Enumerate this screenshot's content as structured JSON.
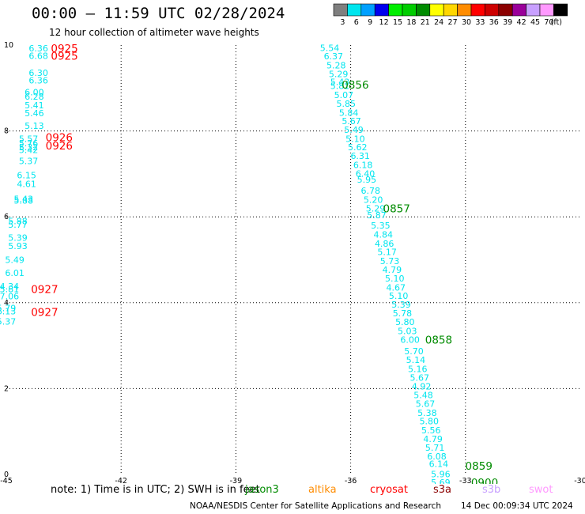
{
  "header": {
    "title": "00:00 – 11:59 UTC 02/28/2024",
    "subtitle": "12 hour collection of altimeter wave heights"
  },
  "colorbar": {
    "unit_label": "(ft)",
    "bins": [
      {
        "label": "3",
        "color": "#7f7f7f"
      },
      {
        "label": "6",
        "color": "#00e5ee"
      },
      {
        "label": "9",
        "color": "#00a0ff"
      },
      {
        "label": "12",
        "color": "#0000ee"
      },
      {
        "label": "15",
        "color": "#00ee00"
      },
      {
        "label": "18",
        "color": "#00cd00"
      },
      {
        "label": "21",
        "color": "#008b00"
      },
      {
        "label": "24",
        "color": "#ffff00"
      },
      {
        "label": "27",
        "color": "#ffd700"
      },
      {
        "label": "30",
        "color": "#ff8c00"
      },
      {
        "label": "33",
        "color": "#ff0000"
      },
      {
        "label": "36",
        "color": "#cd0000"
      },
      {
        "label": "39",
        "color": "#8b0000"
      },
      {
        "label": "42",
        "color": "#9a009a"
      },
      {
        "label": "45",
        "color": "#c8a0ff"
      },
      {
        "label": "70",
        "color": "#ff99ff"
      },
      {
        "label": "",
        "color": "#000000"
      }
    ]
  },
  "footer": {
    "note": "note:  1) Time is in UTC;  2) SWH is in feet",
    "satellites": [
      {
        "name": "jason3",
        "color": "#008b00"
      },
      {
        "name": "altika",
        "color": "#ff8c00"
      },
      {
        "name": "cryosat",
        "color": "#ff0000"
      },
      {
        "name": "s3a",
        "color": "#8b0000"
      },
      {
        "name": "s3b",
        "color": "#c8a0ff"
      },
      {
        "name": "swot",
        "color": "#ff99ff"
      }
    ],
    "credit": "NOAA/NESDIS Center for Satellite Applications and Research",
    "stamp": "14 Dec 00:09:34 UTC 2024"
  },
  "chart_data": {
    "type": "scatter",
    "title": "00:00 – 11:59 UTC 02/28/2024",
    "subtitle": "12 hour collection of altimeter wave heights",
    "xlabel": "",
    "ylabel": "",
    "xlim": [
      -45,
      -30
    ],
    "ylim": [
      0,
      10
    ],
    "x_ticks": [
      -45,
      -42,
      -39,
      -36,
      -33,
      -30
    ],
    "y_ticks": [
      0,
      2,
      4,
      6,
      8,
      10
    ],
    "grid": true,
    "value_color": "#00e5ee",
    "series": [
      {
        "name": "cryosat",
        "color": "#ff0000",
        "points": [
          {
            "x": -44.16,
            "y": 9.93,
            "v": "6.36"
          },
          {
            "x": -44.16,
            "y": 9.75,
            "v": "6.68"
          },
          {
            "x": -44.16,
            "y": 9.36,
            "v": "6.30"
          },
          {
            "x": -44.16,
            "y": 9.18,
            "v": "6.36"
          },
          {
            "x": -44.27,
            "y": 8.9,
            "v": "6.00"
          },
          {
            "x": -44.27,
            "y": 8.8,
            "v": "6.28"
          },
          {
            "x": -44.27,
            "y": 8.6,
            "v": "5.41"
          },
          {
            "x": -44.27,
            "y": 8.42,
            "v": "5.46"
          },
          {
            "x": -44.27,
            "y": 8.12,
            "v": "5.13"
          },
          {
            "x": -44.42,
            "y": 7.82,
            "v": "5.57"
          },
          {
            "x": -44.42,
            "y": 7.72,
            "v": "5.76"
          },
          {
            "x": -44.42,
            "y": 7.62,
            "v": "5.32"
          },
          {
            "x": -44.42,
            "y": 7.56,
            "v": "5.42"
          },
          {
            "x": -44.42,
            "y": 7.3,
            "v": "5.37"
          },
          {
            "x": -44.47,
            "y": 6.97,
            "v": "6.15"
          },
          {
            "x": -44.47,
            "y": 6.77,
            "v": "4.61"
          },
          {
            "x": -44.55,
            "y": 6.42,
            "v": "5.43"
          },
          {
            "x": -44.55,
            "y": 6.38,
            "v": "5.88"
          },
          {
            "x": -44.7,
            "y": 5.9,
            "v": "5.88"
          },
          {
            "x": -44.7,
            "y": 5.82,
            "v": "5.77"
          },
          {
            "x": -44.7,
            "y": 5.52,
            "v": "5.39"
          },
          {
            "x": -44.7,
            "y": 5.32,
            "v": "5.93"
          },
          {
            "x": -44.78,
            "y": 5.0,
            "v": "5.49"
          },
          {
            "x": -44.78,
            "y": 4.7,
            "v": "6.01"
          },
          {
            "x": -44.92,
            "y": 4.38,
            "v": "4.34"
          },
          {
            "x": -44.92,
            "y": 4.32,
            "v": "5.81"
          },
          {
            "x": -44.92,
            "y": 4.15,
            "v": "7.06"
          },
          {
            "x": -45.0,
            "y": 3.88,
            "v": "5.79"
          },
          {
            "x": -45.0,
            "y": 3.8,
            "v": "6.13"
          },
          {
            "x": -45.0,
            "y": 3.56,
            "v": "5.37"
          }
        ],
        "time_labels": [
          {
            "x": -43.48,
            "y": 9.93,
            "t": "0925"
          },
          {
            "x": -43.48,
            "y": 9.75,
            "t": "0925"
          },
          {
            "x": -43.62,
            "y": 7.85,
            "t": "0926"
          },
          {
            "x": -43.62,
            "y": 7.66,
            "t": "0926"
          },
          {
            "x": -44.0,
            "y": 4.32,
            "t": "0927"
          },
          {
            "x": -44.0,
            "y": 3.78,
            "t": "0927"
          }
        ]
      },
      {
        "name": "jason3",
        "color": "#008b00",
        "points": [
          {
            "x": -36.55,
            "y": 9.94,
            "v": "5.54"
          },
          {
            "x": -36.45,
            "y": 9.74,
            "v": "6.37"
          },
          {
            "x": -36.38,
            "y": 9.53,
            "v": "5.28"
          },
          {
            "x": -36.32,
            "y": 9.33,
            "v": "5.29"
          },
          {
            "x": -36.28,
            "y": 9.14,
            "v": "5.43"
          },
          {
            "x": -36.28,
            "y": 9.05,
            "v": "5.81"
          },
          {
            "x": -36.18,
            "y": 8.84,
            "v": "5.07"
          },
          {
            "x": -36.12,
            "y": 8.64,
            "v": "5.85"
          },
          {
            "x": -36.05,
            "y": 8.43,
            "v": "5.84"
          },
          {
            "x": -35.98,
            "y": 8.23,
            "v": "5.67"
          },
          {
            "x": -35.92,
            "y": 8.03,
            "v": "5.49"
          },
          {
            "x": -35.88,
            "y": 7.82,
            "v": "5.10"
          },
          {
            "x": -35.82,
            "y": 7.62,
            "v": "5.62"
          },
          {
            "x": -35.75,
            "y": 7.42,
            "v": "6.31"
          },
          {
            "x": -35.68,
            "y": 7.21,
            "v": "6.18"
          },
          {
            "x": -35.62,
            "y": 7.01,
            "v": "6.40"
          },
          {
            "x": -35.58,
            "y": 6.87,
            "v": "5.95"
          },
          {
            "x": -35.48,
            "y": 6.61,
            "v": "6.78"
          },
          {
            "x": -35.41,
            "y": 6.4,
            "v": "5.20"
          },
          {
            "x": -35.35,
            "y": 6.2,
            "v": "5.29"
          },
          {
            "x": -35.32,
            "y": 6.04,
            "v": "5.87"
          },
          {
            "x": -35.22,
            "y": 5.8,
            "v": "5.35"
          },
          {
            "x": -35.15,
            "y": 5.59,
            "v": "4.84"
          },
          {
            "x": -35.12,
            "y": 5.38,
            "v": "4.86"
          },
          {
            "x": -35.05,
            "y": 5.18,
            "v": "5.17"
          },
          {
            "x": -34.98,
            "y": 4.97,
            "v": "5.73"
          },
          {
            "x": -34.92,
            "y": 4.77,
            "v": "4.79"
          },
          {
            "x": -34.85,
            "y": 4.57,
            "v": "5.10"
          },
          {
            "x": -34.82,
            "y": 4.36,
            "v": "4.67"
          },
          {
            "x": -34.75,
            "y": 4.16,
            "v": "5.10"
          },
          {
            "x": -34.68,
            "y": 3.96,
            "v": "5.39"
          },
          {
            "x": -34.65,
            "y": 3.76,
            "v": "5.78"
          },
          {
            "x": -34.58,
            "y": 3.55,
            "v": "5.80"
          },
          {
            "x": -34.52,
            "y": 3.34,
            "v": "5.03"
          },
          {
            "x": -34.45,
            "y": 3.14,
            "v": "6.00"
          },
          {
            "x": -34.35,
            "y": 2.87,
            "v": "5.70"
          },
          {
            "x": -34.3,
            "y": 2.67,
            "v": "5.14"
          },
          {
            "x": -34.25,
            "y": 2.46,
            "v": "5.16"
          },
          {
            "x": -34.2,
            "y": 2.26,
            "v": "5.67"
          },
          {
            "x": -34.15,
            "y": 2.05,
            "v": "4.92"
          },
          {
            "x": -34.1,
            "y": 1.85,
            "v": "5.48"
          },
          {
            "x": -34.05,
            "y": 1.65,
            "v": "5.67"
          },
          {
            "x": -34.0,
            "y": 1.44,
            "v": "5.38"
          },
          {
            "x": -33.95,
            "y": 1.24,
            "v": "5.80"
          },
          {
            "x": -33.9,
            "y": 1.03,
            "v": "5.56"
          },
          {
            "x": -33.85,
            "y": 0.83,
            "v": "4.79"
          },
          {
            "x": -33.8,
            "y": 0.63,
            "v": "5.71"
          },
          {
            "x": -33.75,
            "y": 0.42,
            "v": "6.08"
          },
          {
            "x": -33.7,
            "y": 0.25,
            "v": "6.14"
          },
          {
            "x": -33.65,
            "y": 0.01,
            "v": "5.96"
          },
          {
            "x": -33.65,
            "y": -0.18,
            "v": "5.69"
          }
        ],
        "time_labels": [
          {
            "x": -35.88,
            "y": 9.08,
            "t": "0856"
          },
          {
            "x": -34.8,
            "y": 6.2,
            "t": "0857"
          },
          {
            "x": -33.7,
            "y": 3.14,
            "t": "0858"
          },
          {
            "x": -32.65,
            "y": 0.2,
            "t": "0859"
          },
          {
            "x": -32.5,
            "y": -0.18,
            "t": "0900"
          }
        ]
      }
    ]
  }
}
